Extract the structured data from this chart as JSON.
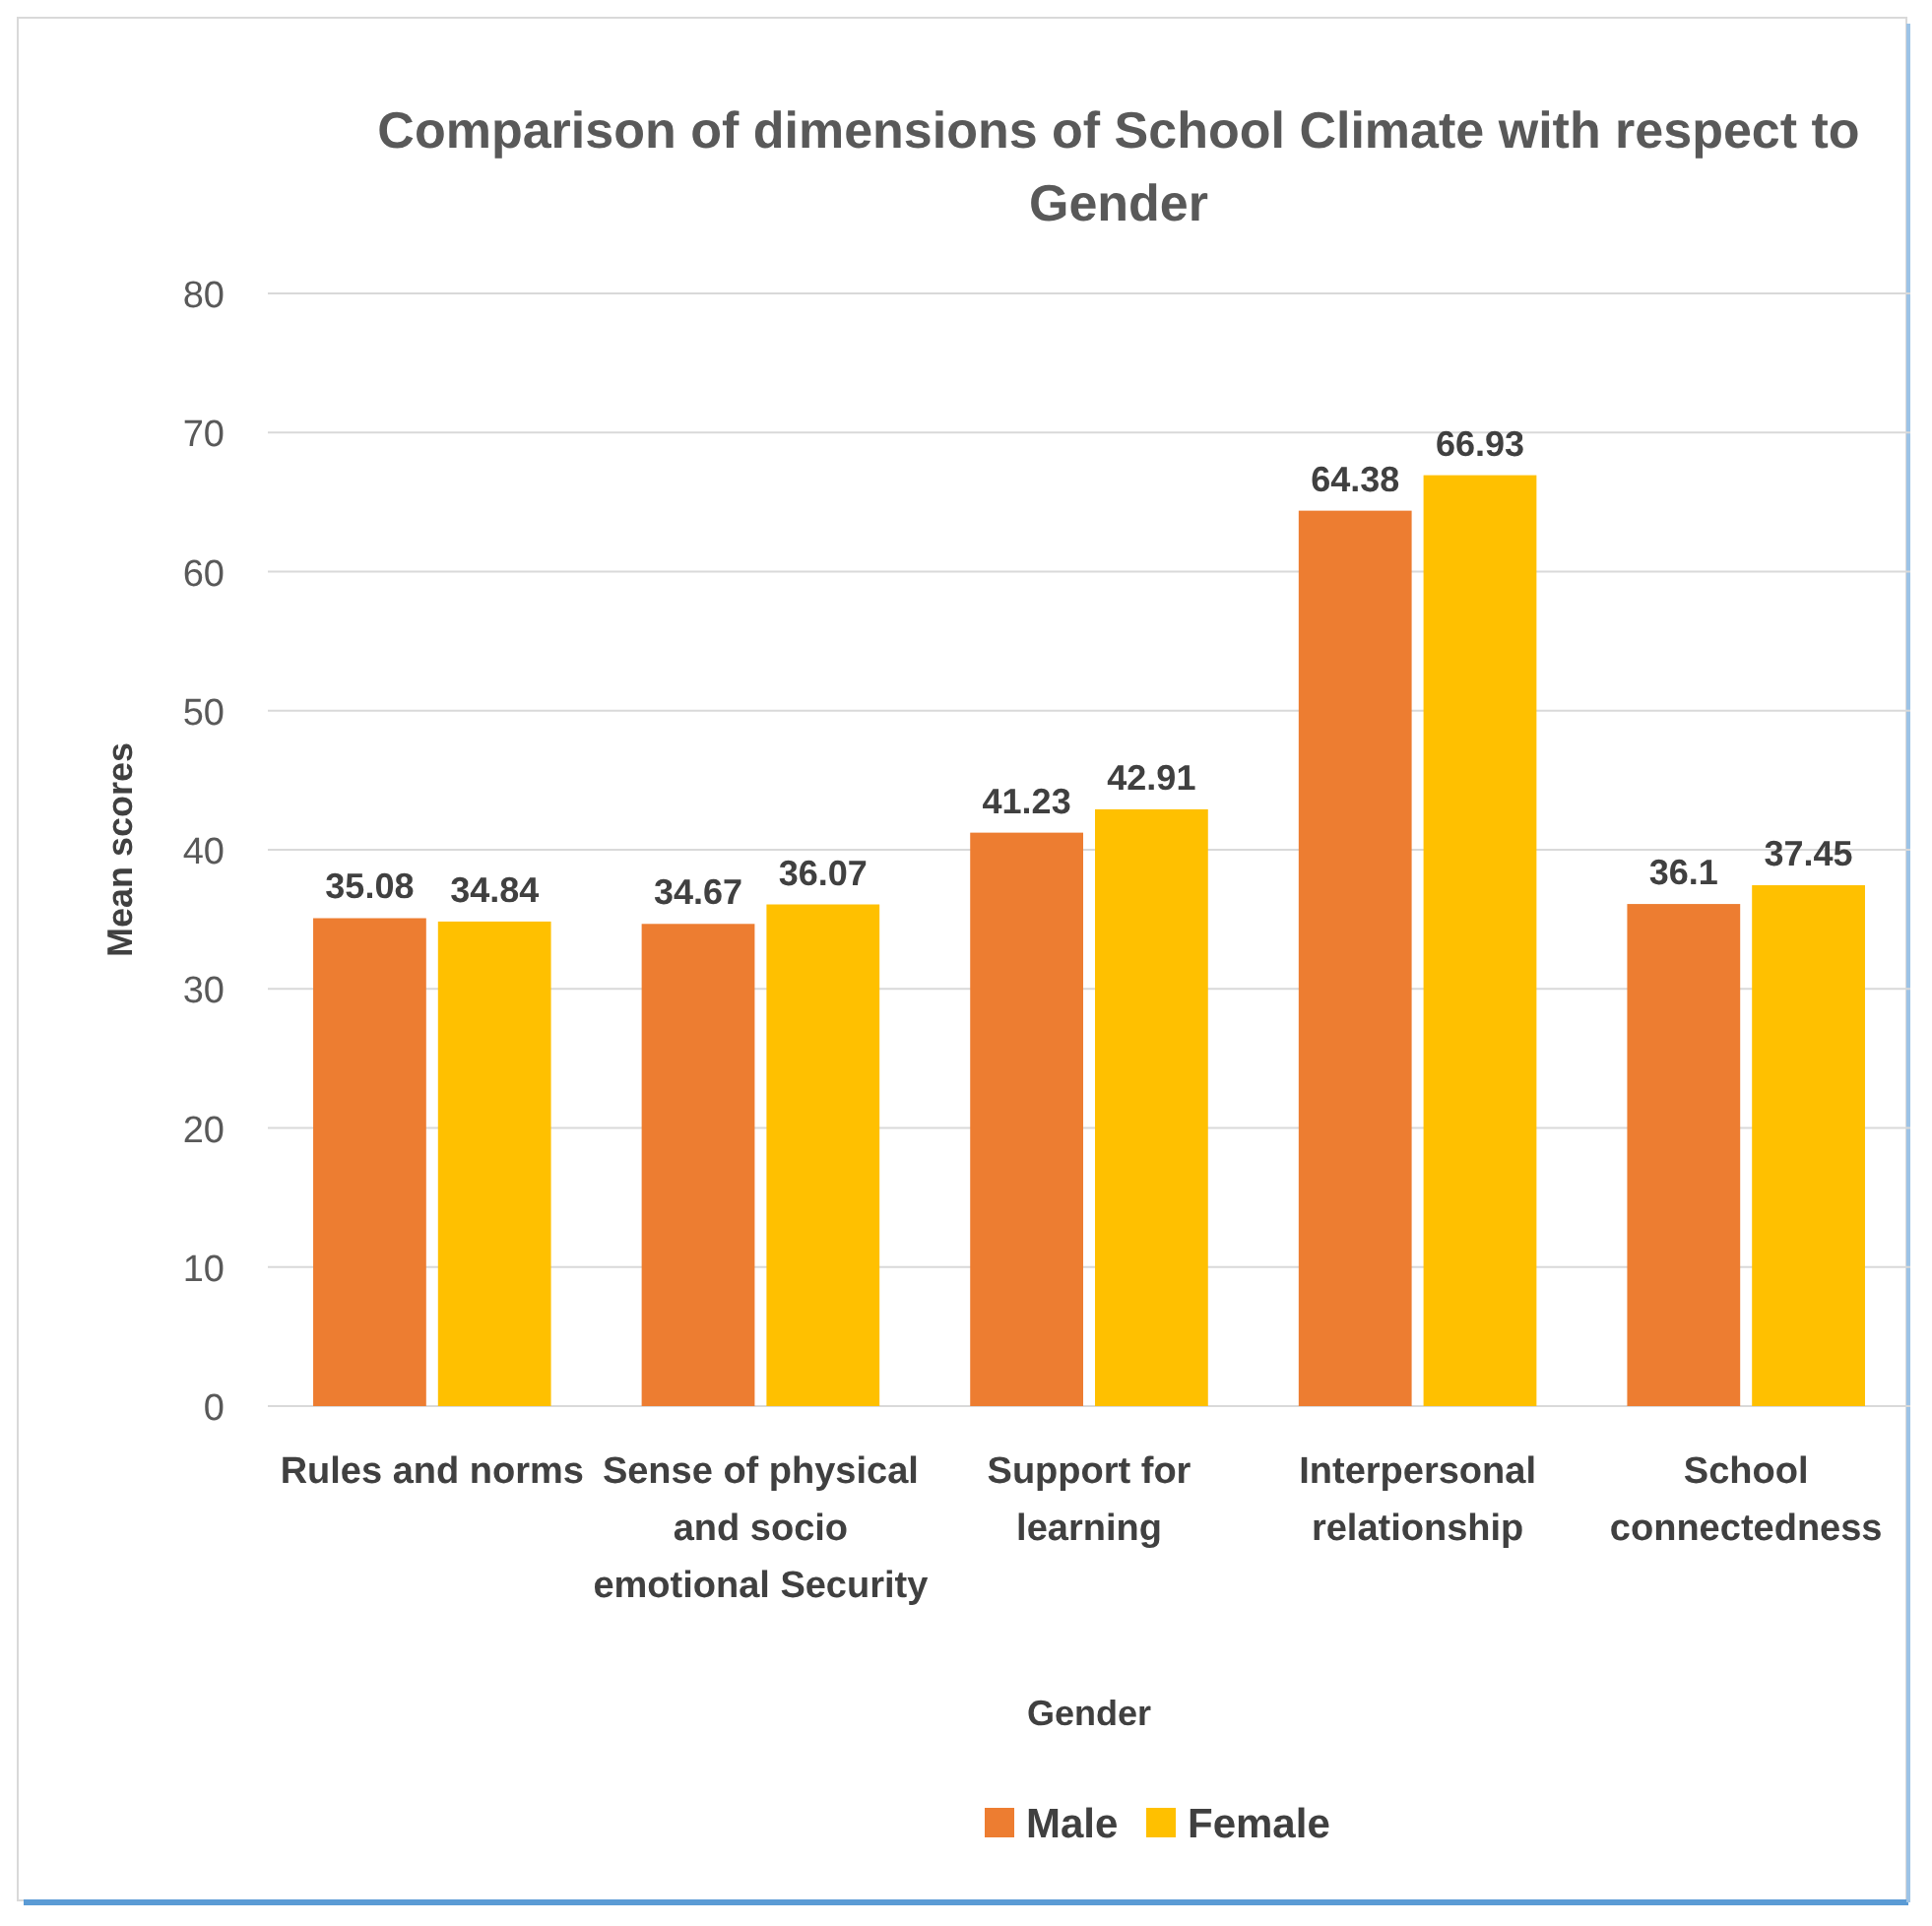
{
  "chart_data": {
    "type": "bar",
    "title": "Comparison of dimensions of School Climate with respect to Gender",
    "xlabel": "Gender",
    "ylabel": "Mean scores",
    "categories": [
      "Rules and norms",
      "Sense of physical and socio emotional Security",
      "Support for learning",
      "Interpersonal relationship",
      "School connectedness"
    ],
    "series": [
      {
        "name": "Male",
        "color": "#ed7d31",
        "values": [
          35.08,
          34.67,
          41.23,
          64.38,
          36.1
        ]
      },
      {
        "name": "Female",
        "color": "#ffc000",
        "values": [
          34.84,
          36.07,
          42.91,
          66.93,
          37.45
        ]
      }
    ],
    "ylim": [
      0,
      80
    ],
    "yticks": [
      0,
      10,
      20,
      30,
      40,
      50,
      60,
      70,
      80
    ],
    "grid": "y",
    "legend": "bottom",
    "data_labels": true
  }
}
